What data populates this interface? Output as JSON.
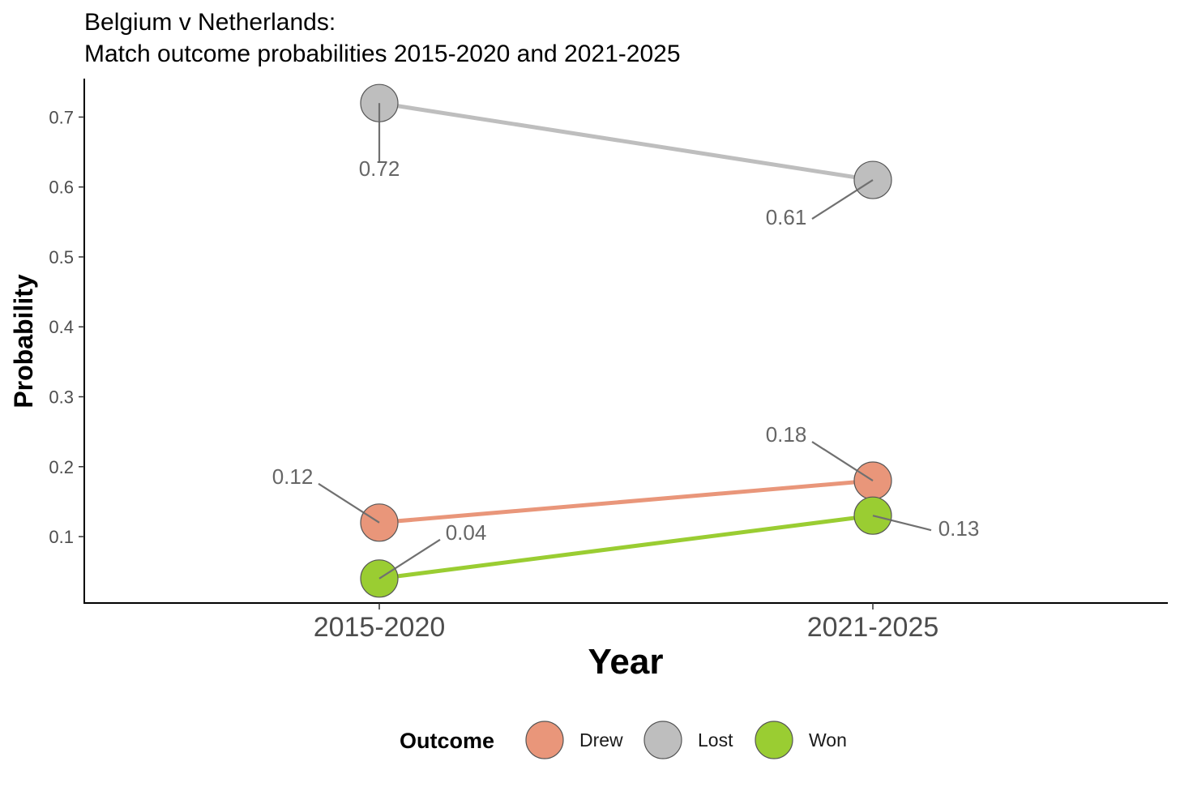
{
  "chart_data": {
    "type": "line",
    "title_lines": [
      "Belgium v Netherlands:",
      "Match outcome probabilities 2015-2020 and 2021-2025"
    ],
    "xlabel": "Year",
    "ylabel": "Probability",
    "categories": [
      "2015-2020",
      "2021-2025"
    ],
    "ylim": [
      0.005,
      0.755
    ],
    "yticks": [
      0.1,
      0.2,
      0.3,
      0.4,
      0.5,
      0.6,
      0.7
    ],
    "ytick_labels": [
      "0.1",
      "0.2",
      "0.3",
      "0.4",
      "0.5",
      "0.6",
      "0.7"
    ],
    "grid": false,
    "legend_position": "bottom",
    "legend_title": "Outcome",
    "series": [
      {
        "name": "Drew",
        "color": "#E9967A",
        "values": [
          0.12,
          0.18
        ],
        "labels": [
          "0.12",
          "0.18"
        ]
      },
      {
        "name": "Lost",
        "color": "#BEBEBE",
        "values": [
          0.72,
          0.61
        ],
        "labels": [
          "0.72",
          "0.61"
        ]
      },
      {
        "name": "Won",
        "color": "#9ACD32",
        "values": [
          0.04,
          0.13
        ],
        "labels": [
          "0.04",
          "0.13"
        ]
      }
    ]
  }
}
